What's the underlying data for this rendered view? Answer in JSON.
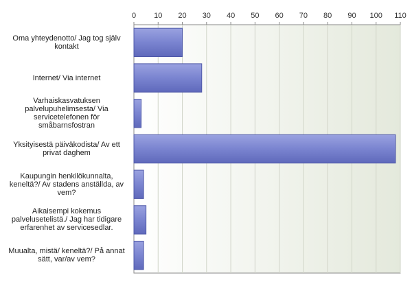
{
  "chart_data": {
    "type": "bar",
    "orientation": "horizontal",
    "categories": [
      "Oma yhteydenotto/ Jag tog själv kontakt",
      "Internet/ Via internet",
      "Varhaiskasvatuksen palvelupuhelimsesta/ Via servicetelefonen för småbarnsfostran",
      "Yksityisestä päiväkodista/ Av ett privat daghem",
      "Kaupungin henkilökunnalta, keneltä?/ Av stadens anställda, av vem?",
      "Aikaisempi kokemus palvelusetelistä./ Jag har tidigare erfarenhet av servicesedlar.",
      "Muualta, mistä/ keneltä?/ På annat sätt, var/av vem?"
    ],
    "values": [
      20,
      28,
      3,
      108,
      4,
      5,
      4
    ],
    "xlim": [
      0,
      110
    ],
    "xticks": [
      0,
      10,
      20,
      30,
      40,
      50,
      60,
      70,
      80,
      90,
      100,
      110
    ],
    "xaxis_position": "top",
    "grid": true,
    "legend": "none",
    "colors": {
      "bar": "#7a84d0",
      "bar_edge": "#4e58a8",
      "plot_bg": "#eef1e8",
      "grid": "#d0d4c8",
      "axis": "#888888"
    }
  }
}
